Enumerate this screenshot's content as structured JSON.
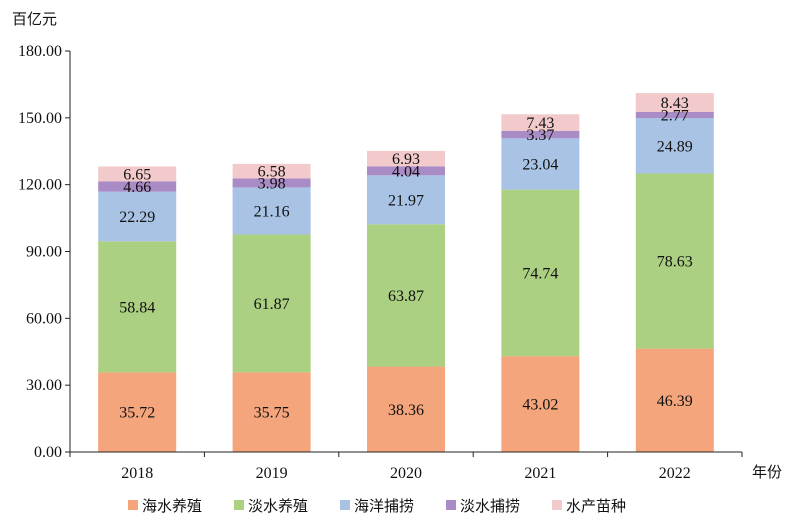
{
  "chart_data": {
    "type": "bar",
    "stacked": true,
    "title": "",
    "ylabel": "百亿元",
    "xlabel": "年份",
    "ylim": [
      0,
      180
    ],
    "yticks": [
      "0.00",
      "30.00",
      "60.00",
      "90.00",
      "120.00",
      "150.00",
      "180.00"
    ],
    "categories": [
      "2018",
      "2019",
      "2020",
      "2021",
      "2022"
    ],
    "series": [
      {
        "name": "海水养殖",
        "color": "#F4A57C",
        "values": [
          35.72,
          35.75,
          38.36,
          43.02,
          46.39
        ],
        "labels": [
          "35.72",
          "35.75",
          "38.36",
          "43.02",
          "46.39"
        ]
      },
      {
        "name": "淡水养殖",
        "color": "#ACD082",
        "values": [
          58.84,
          61.87,
          63.87,
          74.74,
          78.63
        ],
        "labels": [
          "58.84",
          "61.87",
          "63.87",
          "74.74",
          "78.63"
        ]
      },
      {
        "name": "海洋捕捞",
        "color": "#A9C3E4",
        "values": [
          22.29,
          21.16,
          21.97,
          23.04,
          24.89
        ],
        "labels": [
          "22.29",
          "21.16",
          "21.97",
          "23.04",
          "24.89"
        ]
      },
      {
        "name": "淡水捕捞",
        "color": "#A98BC6",
        "values": [
          4.66,
          3.98,
          4.04,
          3.37,
          2.77
        ],
        "labels": [
          "4.66",
          "3.98",
          "4.04",
          "3.37",
          "2.77"
        ]
      },
      {
        "name": "水产苗种",
        "color": "#F2CACB",
        "values": [
          6.65,
          6.58,
          6.93,
          7.43,
          8.43
        ],
        "labels": [
          "6.65",
          "6.58",
          "6.93",
          "7.43",
          "8.43"
        ]
      }
    ],
    "legend_position": "bottom",
    "grid": false
  }
}
